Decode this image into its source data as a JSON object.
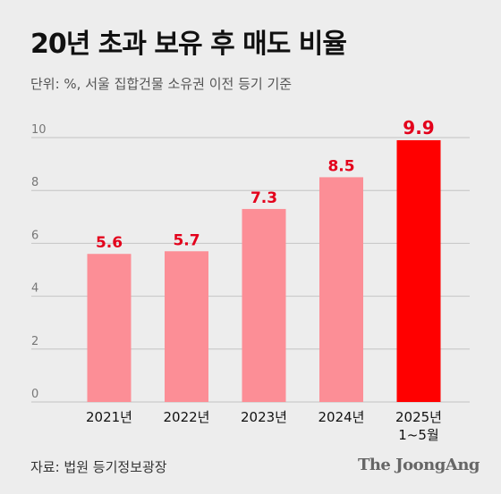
{
  "title": "20년 초과 보유 후 매도 비율",
  "subtitle": "단위: %, 서울 집합건물 소유권 이전 등기 기준",
  "source": "자료: 법원 등기정보광장",
  "logo_text": "The JoongAng",
  "colors": {
    "bar": "#fc8e96",
    "highlight": "#ff0000",
    "label": "#e3001b",
    "grid": "#c4c4c4",
    "axis_text": "#777777"
  },
  "chart_data": {
    "type": "bar",
    "categories": [
      "2021년",
      "2022년",
      "2023년",
      "2024년",
      "2025년\n1~5월"
    ],
    "values": [
      5.6,
      5.7,
      7.3,
      8.5,
      9.9
    ],
    "value_labels": [
      "5.6",
      "5.7",
      "7.3",
      "8.5",
      "9.9"
    ],
    "highlight_index": 4,
    "ylim": [
      0,
      10
    ],
    "yticks": [
      0,
      2,
      4,
      6,
      8,
      10
    ],
    "grid": true,
    "title": "20년 초과 보유 후 매도 비율",
    "xlabel": "",
    "ylabel": ""
  }
}
